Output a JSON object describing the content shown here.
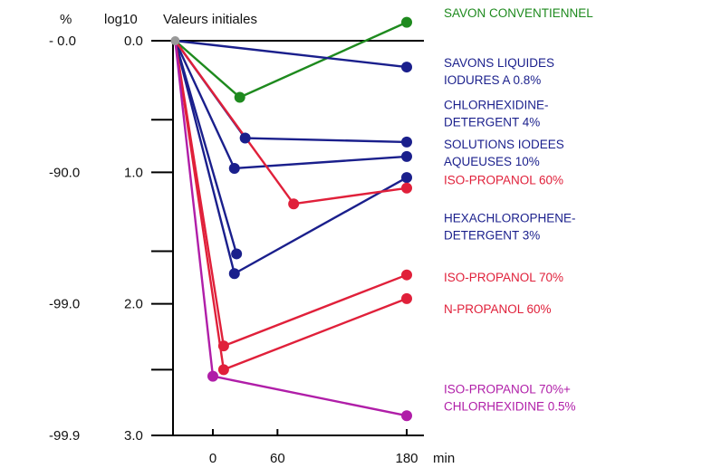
{
  "chart_data": {
    "type": "line",
    "header": {
      "pct_unit": "%",
      "log_unit": "log10",
      "baseline_label": "Valeurs initiales"
    },
    "xlabel": "min",
    "x_ticks": [
      {
        "value": 0,
        "label": "0"
      },
      {
        "value": 60,
        "label": "60"
      },
      {
        "value": 180,
        "label": "180"
      }
    ],
    "ylim": [
      0.0,
      3.0
    ],
    "log_ticks": [
      {
        "value": 0.0,
        "label": "0.0"
      },
      {
        "value": 1.0,
        "label": "1.0"
      },
      {
        "value": 2.0,
        "label": "2.0"
      },
      {
        "value": 3.0,
        "label": "3.0"
      }
    ],
    "pct_ticks": [
      {
        "value": 0.0,
        "label": "-  0.0"
      },
      {
        "value": 1.0,
        "label": "-90.0"
      },
      {
        "value": 2.0,
        "label": "-99.0"
      },
      {
        "value": 3.0,
        "label": "-99.9"
      }
    ],
    "minor_ticks": [
      0.6,
      1.6,
      2.5
    ],
    "start_point": {
      "x": -35,
      "y": 0.0,
      "color": "#999999"
    },
    "series": [
      {
        "name": "SAVON CONVENTIENNEL",
        "color": "#1e8a1e",
        "label_lines": [
          "SAVON CONVENTIENNEL"
        ],
        "points": [
          [
            -35,
            0.0
          ],
          [
            25,
            0.43
          ],
          [
            180,
            -0.14
          ]
        ],
        "markers": [
          1,
          2
        ],
        "label_anchor_y": -0.18
      },
      {
        "name": "SAVONS LIQUIDES IODURES A 0.8%",
        "color": "#1a1f8c",
        "label_lines": [
          "SAVONS LIQUIDES",
          "IODURES A 0.8%"
        ],
        "points": [
          [
            -35,
            0.0
          ],
          [
            180,
            0.2
          ]
        ],
        "markers": [
          1
        ],
        "label_anchor_y": 0.2
      },
      {
        "name": "CHLORHEXIDINE-DETERGENT 4%",
        "color": "#1a1f8c",
        "label_lines": [
          "CHLORHEXIDINE-",
          "DETERGENT 4%"
        ],
        "points": [
          [
            -35,
            0.0
          ],
          [
            30,
            0.74
          ],
          [
            180,
            0.77
          ]
        ],
        "markers": [
          1,
          2
        ],
        "label_anchor_y": 0.52
      },
      {
        "name": "SOLUTIONS IODEES AQUEUSES 10%",
        "color": "#1a1f8c",
        "label_lines": [
          "SOLUTIONS IODEES",
          "AQUEUSES 10%"
        ],
        "points": [
          [
            -35,
            0.0
          ],
          [
            20,
            0.97
          ],
          [
            180,
            0.88
          ]
        ],
        "markers": [
          1,
          2
        ],
        "label_anchor_y": 0.82
      },
      {
        "name": "HEXACHLOROPHENE-DETERGENT 3%",
        "color": "#1a1f8c",
        "label_lines": [
          "HEXACHLOROPHENE-",
          "DETERGENT 3%"
        ],
        "points": [
          [
            -35,
            0.0
          ],
          [
            20,
            1.77
          ],
          [
            180,
            1.04
          ]
        ],
        "markers": [
          1,
          2
        ],
        "label_anchor_y": 1.38
      },
      {
        "name": "HEXACHLOROPHENE-DETERGENT 3% (b)",
        "color": "#1a1f8c",
        "label_lines": [],
        "points": [
          [
            -35,
            0.0
          ],
          [
            22,
            1.62
          ]
        ],
        "markers": [
          1
        ],
        "label_anchor_y": null
      },
      {
        "name": "ISO-PROPANOL 60%",
        "color": "#e0203a",
        "label_lines": [
          "ISO-PROPANOL 60%"
        ],
        "points": [
          [
            -35,
            0.0
          ],
          [
            75,
            1.24
          ],
          [
            180,
            1.12
          ]
        ],
        "markers": [
          1,
          2
        ],
        "label_anchor_y": 1.09
      },
      {
        "name": "ISO-PROPANOL 70%",
        "color": "#e0203a",
        "label_lines": [
          "ISO-PROPANOL 70%"
        ],
        "points": [
          [
            -35,
            0.0
          ],
          [
            10,
            2.32
          ],
          [
            180,
            1.78
          ]
        ],
        "markers": [
          1,
          2
        ],
        "label_anchor_y": 1.83
      },
      {
        "name": "N-PROPANOL 60%",
        "color": "#e0203a",
        "label_lines": [
          "N-PROPANOL 60%"
        ],
        "points": [
          [
            -35,
            0.0
          ],
          [
            10,
            2.5
          ],
          [
            180,
            1.96
          ]
        ],
        "markers": [
          1,
          2
        ],
        "label_anchor_y": 2.07
      },
      {
        "name": "ISO-PROPANOL 70%+ CHLORHEXIDINE 0.5%",
        "color": "#b01ea8",
        "label_lines": [
          "ISO-PROPANOL 70%+",
          "CHLORHEXIDINE 0.5%"
        ],
        "points": [
          [
            -35,
            0.0
          ],
          [
            0,
            2.55
          ],
          [
            180,
            2.85
          ]
        ],
        "markers": [
          1,
          2
        ],
        "label_anchor_y": 2.68
      }
    ]
  }
}
